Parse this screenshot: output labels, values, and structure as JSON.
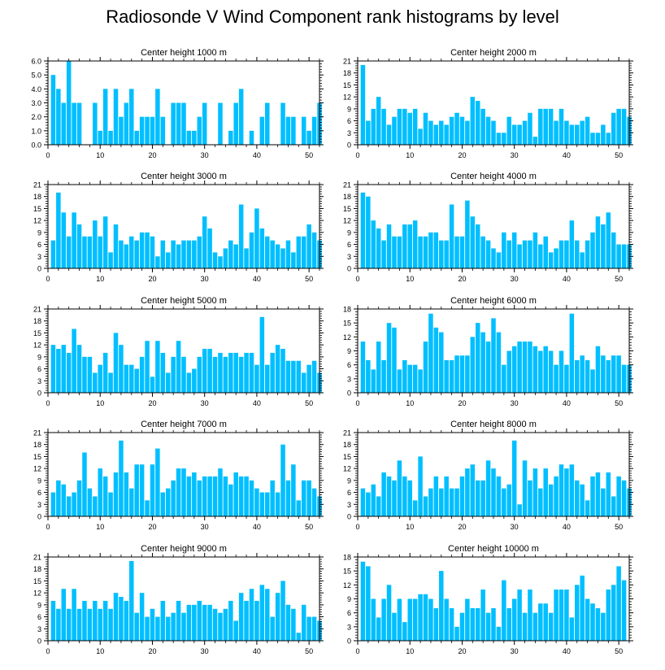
{
  "title": "Radiosonde V Wind Component rank histograms by level",
  "colors": {
    "bar": "#00bfff",
    "axis": "#000000",
    "background": "#ffffff"
  },
  "chart_data": [
    {
      "type": "bar",
      "title": "Center height 1000 m",
      "xlim": [
        0,
        52
      ],
      "ylim": [
        0,
        6
      ],
      "xticks": [
        0,
        10,
        20,
        30,
        40,
        50
      ],
      "yticks": [
        0,
        1,
        2,
        3,
        4,
        5,
        6
      ],
      "yticklabels": [
        "0.0",
        "1.0",
        "2.0",
        "3.0",
        "4.0",
        "5.0",
        "6.0"
      ],
      "values": [
        5,
        4,
        3,
        6,
        3,
        3,
        0,
        0,
        3,
        1,
        4,
        1,
        4,
        2,
        3,
        4,
        1,
        2,
        2,
        2,
        4,
        2,
        0,
        3,
        3,
        3,
        1,
        1,
        2,
        3,
        0,
        0,
        3,
        0,
        1,
        3,
        4,
        0,
        1,
        0,
        2,
        3,
        0,
        0,
        3,
        2,
        2,
        0,
        2,
        1,
        2,
        3
      ]
    },
    {
      "type": "bar",
      "title": "Center height 2000 m",
      "xlim": [
        0,
        52
      ],
      "ylim": [
        0,
        21
      ],
      "xticks": [
        0,
        10,
        20,
        30,
        40,
        50
      ],
      "yticks": [
        0,
        3,
        6,
        9,
        12,
        15,
        18,
        21
      ],
      "yticklabels": [
        "0",
        "3",
        "6",
        "9",
        "12",
        "15",
        "18",
        "21"
      ],
      "values": [
        20,
        6,
        9,
        12,
        9,
        5,
        7,
        9,
        9,
        8,
        9,
        4,
        8,
        6,
        5,
        6,
        5,
        7,
        8,
        7,
        6,
        12,
        11,
        9,
        7,
        6,
        3,
        3,
        7,
        5,
        5,
        6,
        8,
        2,
        9,
        9,
        9,
        6,
        9,
        6,
        5,
        5,
        6,
        7,
        3,
        3,
        5,
        3,
        8,
        9,
        9,
        7
      ]
    },
    {
      "type": "bar",
      "title": "Center height 3000 m",
      "xlim": [
        0,
        52
      ],
      "ylim": [
        0,
        21
      ],
      "xticks": [
        0,
        10,
        20,
        30,
        40,
        50
      ],
      "yticks": [
        0,
        3,
        6,
        9,
        12,
        15,
        18,
        21
      ],
      "yticklabels": [
        "0",
        "3",
        "6",
        "9",
        "12",
        "15",
        "18",
        "21"
      ],
      "values": [
        7,
        19,
        14,
        8,
        14,
        11,
        8,
        8,
        12,
        8,
        13,
        4,
        11,
        7,
        6,
        8,
        7,
        9,
        9,
        8,
        3,
        7,
        4,
        7,
        6,
        7,
        7,
        7,
        8,
        13,
        10,
        4,
        3,
        5,
        7,
        6,
        16,
        5,
        9,
        15,
        10,
        8,
        7,
        6,
        5,
        7,
        4,
        8,
        8,
        11,
        9,
        7
      ]
    },
    {
      "type": "bar",
      "title": "Center height 4000 m",
      "xlim": [
        0,
        52
      ],
      "ylim": [
        0,
        21
      ],
      "xticks": [
        0,
        10,
        20,
        30,
        40,
        50
      ],
      "yticks": [
        0,
        3,
        6,
        9,
        12,
        15,
        18,
        21
      ],
      "yticklabels": [
        "0",
        "3",
        "6",
        "9",
        "12",
        "15",
        "18",
        "21"
      ],
      "values": [
        19,
        18,
        12,
        10,
        7,
        11,
        8,
        8,
        11,
        11,
        12,
        8,
        8,
        9,
        9,
        7,
        7,
        16,
        8,
        8,
        17,
        13,
        11,
        8,
        7,
        5,
        4,
        9,
        7,
        9,
        6,
        7,
        7,
        9,
        6,
        8,
        4,
        5,
        7,
        7,
        12,
        7,
        4,
        7,
        9,
        13,
        11,
        14,
        9,
        6,
        6,
        6
      ]
    },
    {
      "type": "bar",
      "title": "Center height 5000 m",
      "xlim": [
        0,
        52
      ],
      "ylim": [
        0,
        21
      ],
      "xticks": [
        0,
        10,
        20,
        30,
        40,
        50
      ],
      "yticks": [
        0,
        3,
        6,
        9,
        12,
        15,
        18,
        21
      ],
      "yticklabels": [
        "0",
        "3",
        "6",
        "9",
        "12",
        "15",
        "18",
        "21"
      ],
      "values": [
        12,
        11,
        12,
        10,
        16,
        12,
        9,
        9,
        5,
        7,
        10,
        5,
        15,
        12,
        7,
        7,
        6,
        9,
        13,
        4,
        13,
        10,
        5,
        9,
        13,
        9,
        5,
        6,
        9,
        11,
        11,
        9,
        10,
        9,
        10,
        10,
        9,
        10,
        10,
        7,
        19,
        7,
        10,
        12,
        11,
        8,
        8,
        8,
        5,
        7,
        8,
        5
      ]
    },
    {
      "type": "bar",
      "title": "Center height 6000 m",
      "xlim": [
        0,
        52
      ],
      "ylim": [
        0,
        18
      ],
      "xticks": [
        0,
        10,
        20,
        30,
        40,
        50
      ],
      "yticks": [
        0,
        3,
        6,
        9,
        12,
        15,
        18
      ],
      "yticklabels": [
        "0",
        "3",
        "6",
        "9",
        "12",
        "15",
        "18"
      ],
      "values": [
        11,
        7,
        5,
        11,
        7,
        15,
        14,
        5,
        7,
        6,
        6,
        5,
        11,
        17,
        14,
        13,
        7,
        7,
        8,
        8,
        8,
        12,
        15,
        13,
        11,
        16,
        13,
        6,
        9,
        10,
        11,
        11,
        11,
        10,
        9,
        10,
        9,
        6,
        9,
        6,
        17,
        7,
        8,
        7,
        5,
        10,
        8,
        7,
        8,
        8,
        6,
        6
      ]
    },
    {
      "type": "bar",
      "title": "Center height 7000 m",
      "xlim": [
        0,
        52
      ],
      "ylim": [
        0,
        21
      ],
      "xticks": [
        0,
        10,
        20,
        30,
        40,
        50
      ],
      "yticks": [
        0,
        3,
        6,
        9,
        12,
        15,
        18,
        21
      ],
      "yticklabels": [
        "0",
        "3",
        "6",
        "9",
        "12",
        "15",
        "18",
        "21"
      ],
      "values": [
        6,
        9,
        8,
        5,
        6,
        9,
        16,
        7,
        5,
        12,
        10,
        6,
        11,
        19,
        11,
        7,
        13,
        13,
        4,
        13,
        17,
        6,
        7,
        9,
        12,
        12,
        10,
        11,
        9,
        10,
        10,
        10,
        12,
        10,
        8,
        11,
        10,
        10,
        9,
        7,
        6,
        6,
        9,
        6,
        18,
        9,
        13,
        4,
        9,
        9,
        7,
        5
      ]
    },
    {
      "type": "bar",
      "title": "Center height 8000 m",
      "xlim": [
        0,
        52
      ],
      "ylim": [
        0,
        21
      ],
      "xticks": [
        0,
        10,
        20,
        30,
        40,
        50
      ],
      "yticks": [
        0,
        3,
        6,
        9,
        12,
        15,
        18,
        21
      ],
      "yticklabels": [
        "0",
        "3",
        "6",
        "9",
        "12",
        "15",
        "18",
        "21"
      ],
      "values": [
        7,
        6,
        8,
        5,
        11,
        10,
        9,
        14,
        10,
        9,
        4,
        15,
        5,
        7,
        10,
        7,
        10,
        7,
        7,
        10,
        12,
        13,
        9,
        9,
        14,
        12,
        10,
        7,
        8,
        19,
        3,
        14,
        9,
        12,
        7,
        12,
        8,
        10,
        13,
        12,
        13,
        9,
        8,
        4,
        10,
        11,
        7,
        11,
        5,
        10,
        9,
        7
      ]
    },
    {
      "type": "bar",
      "title": "Center height 9000 m",
      "xlim": [
        0,
        52
      ],
      "ylim": [
        0,
        21
      ],
      "xticks": [
        0,
        10,
        20,
        30,
        40,
        50
      ],
      "yticks": [
        0,
        3,
        6,
        9,
        12,
        15,
        18,
        21
      ],
      "yticklabels": [
        "0",
        "3",
        "6",
        "9",
        "12",
        "15",
        "18",
        "21"
      ],
      "values": [
        10,
        8,
        13,
        8,
        13,
        8,
        10,
        8,
        10,
        8,
        10,
        8,
        12,
        11,
        10,
        20,
        7,
        12,
        6,
        8,
        6,
        10,
        6,
        7,
        10,
        7,
        9,
        9,
        10,
        9,
        9,
        8,
        7,
        8,
        10,
        5,
        12,
        10,
        13,
        10,
        14,
        13,
        6,
        12,
        15,
        9,
        8,
        2,
        9,
        6,
        6,
        5
      ]
    },
    {
      "type": "bar",
      "title": "Center height 10000 m",
      "xlim": [
        0,
        52
      ],
      "ylim": [
        0,
        18
      ],
      "xticks": [
        0,
        10,
        20,
        30,
        40,
        50
      ],
      "yticks": [
        0,
        3,
        6,
        9,
        12,
        15,
        18
      ],
      "yticklabels": [
        "0",
        "3",
        "6",
        "9",
        "12",
        "15",
        "18"
      ],
      "values": [
        17,
        16,
        9,
        5,
        9,
        12,
        6,
        9,
        4,
        9,
        9,
        10,
        10,
        9,
        7,
        15,
        9,
        7,
        3,
        6,
        9,
        7,
        7,
        11,
        6,
        7,
        3,
        13,
        7,
        9,
        11,
        6,
        11,
        6,
        8,
        8,
        6,
        11,
        11,
        11,
        5,
        12,
        14,
        9,
        8,
        7,
        6,
        11,
        12,
        16,
        13,
        0
      ]
    }
  ]
}
